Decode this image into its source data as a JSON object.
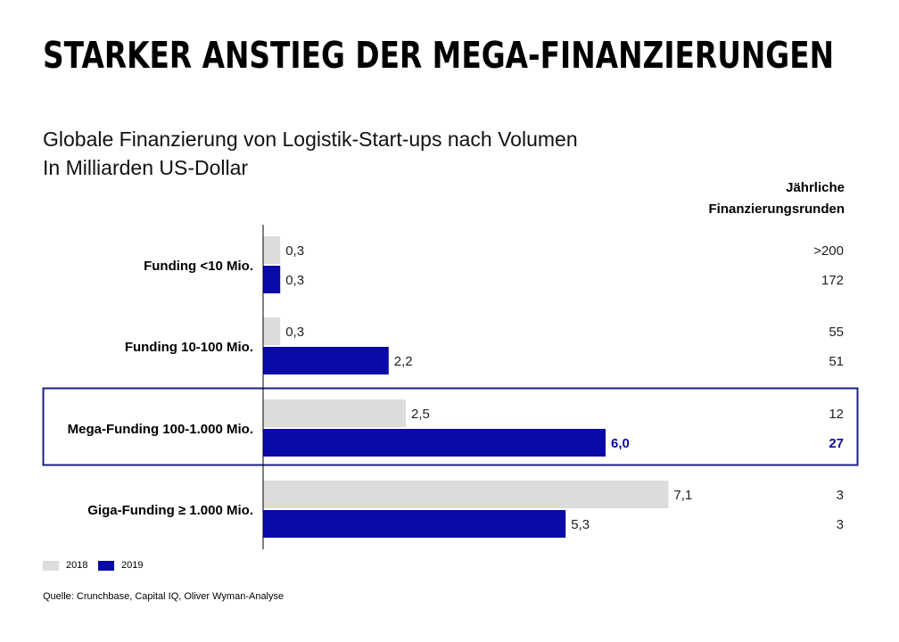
{
  "title": "STARKER ANSTIEG DER MEGA-FINANZIERUNGEN",
  "subtitle": "Globale Finanzierung von Logistik-Start-ups nach Volumen",
  "unit": "In Milliarden US-Dollar",
  "right_header": [
    "Jährliche",
    "Finanzierungsrunden"
  ],
  "source": "Quelle: Crunchbase, Capital IQ, Oliver Wyman-Analyse",
  "colors": {
    "2018": "#dcdcdc",
    "2019": "#0a0aa6",
    "highlight": "#1a237e"
  },
  "chart_data": {
    "type": "bar",
    "orientation": "horizontal",
    "categories": [
      "Funding <10 Mio.",
      "Funding 10-100 Mio.",
      "Mega-Funding 100-1.000 Mio.",
      "Giga-Funding ≥ 1.000 Mio."
    ],
    "series": [
      {
        "name": "2018",
        "values": [
          0.3,
          0.3,
          2.5,
          7.1
        ],
        "labels": [
          "0,3",
          "0,3",
          "2,5",
          "7,1"
        ],
        "rounds": [
          ">200",
          "55",
          "12",
          "3"
        ]
      },
      {
        "name": "2019",
        "values": [
          0.3,
          2.2,
          6.0,
          5.3
        ],
        "labels": [
          "0,3",
          "2,2",
          "6,0",
          "5,3"
        ],
        "rounds": [
          "172",
          "51",
          "27",
          "3"
        ]
      }
    ],
    "highlighted_category": "Mega-Funding 100-1.000 Mio.",
    "legend": "bottom-left",
    "grid": false
  }
}
